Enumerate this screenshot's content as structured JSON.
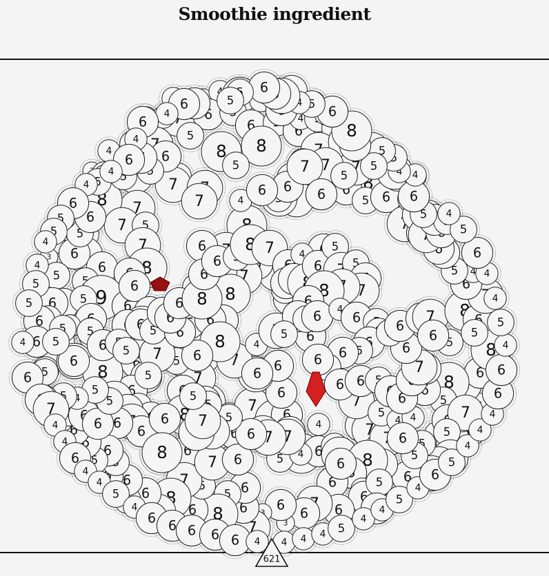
{
  "title": "Smoothie ingredient",
  "counter": "621",
  "colors": {
    "background": "#f5f4f4",
    "ball_fill": "#f6f5f5",
    "ball_stroke": "#222222",
    "aura_stroke": "#777777",
    "pointer_fill": "#d42020",
    "pointer_fill_dark": "#991010"
  },
  "balls": [
    {
      "n": 4
    },
    {
      "n": 4
    },
    {
      "n": 4
    },
    {
      "n": 7
    },
    {
      "n": 4
    },
    {
      "n": 4
    },
    {
      "n": 6
    },
    {
      "n": 4
    },
    {
      "n": 7
    },
    {
      "n": 6
    },
    {
      "n": 5
    },
    {
      "n": 6
    },
    {
      "n": 5
    },
    {
      "n": 6
    },
    {
      "n": 6
    },
    {
      "n": 4
    },
    {
      "n": 5
    },
    {
      "n": 4
    },
    {
      "n": 5
    },
    {
      "n": 8
    },
    {
      "n": 8
    },
    {
      "n": 5
    },
    {
      "n": 7
    },
    {
      "n": 5
    },
    {
      "n": 6
    },
    {
      "n": 4
    },
    {
      "n": 7
    },
    {
      "n": 4
    },
    {
      "n": 5
    },
    {
      "n": 3
    },
    {
      "n": 5
    },
    {
      "n": 7
    },
    {
      "n": 5
    },
    {
      "n": 5
    },
    {
      "n": 7
    },
    {
      "n": 6
    },
    {
      "n": 7
    },
    {
      "n": 8
    },
    {
      "n": 6
    },
    {
      "n": 5
    },
    {
      "n": 4
    },
    {
      "n": 7
    },
    {
      "n": 7
    },
    {
      "n": 7
    },
    {
      "n": 6
    },
    {
      "n": 3
    },
    {
      "n": 6
    },
    {
      "n": 5
    },
    {
      "n": 7
    },
    {
      "n": 5
    },
    {
      "n": 6
    },
    {
      "n": 8
    },
    {
      "n": 4
    },
    {
      "n": 7
    },
    {
      "n": 7
    },
    {
      "n": 7
    },
    {
      "n": 5
    },
    {
      "n": 6
    },
    {
      "n": 6
    },
    {
      "n": 8
    },
    {
      "n": 6
    },
    {
      "n": 5
    },
    {
      "n": 4
    },
    {
      "n": 7
    },
    {
      "n": 7
    },
    {
      "n": 5
    },
    {
      "n": 6
    },
    {
      "n": 7
    },
    {
      "n": 6
    },
    {
      "n": 6
    },
    {
      "n": 7
    },
    {
      "n": 5
    },
    {
      "n": 5
    },
    {
      "n": 7
    },
    {
      "n": 4
    },
    {
      "n": 6
    },
    {
      "n": 6
    },
    {
      "n": 5
    },
    {
      "n": 6
    },
    {
      "n": 3
    },
    {
      "n": 5
    },
    {
      "n": 5
    },
    {
      "n": 8
    },
    {
      "n": 5
    },
    {
      "n": 5
    },
    {
      "n": 7
    },
    {
      "n": 5
    },
    {
      "n": 7
    },
    {
      "n": 6
    },
    {
      "n": 5
    },
    {
      "n": 6
    },
    {
      "n": 4
    },
    {
      "n": 6
    },
    {
      "n": 7
    },
    {
      "n": 8
    },
    {
      "n": 6
    },
    {
      "n": 7
    },
    {
      "n": 3
    },
    {
      "n": 5
    },
    {
      "n": 5
    },
    {
      "n": 6
    },
    {
      "n": 4
    },
    {
      "n": 6
    },
    {
      "n": 5
    },
    {
      "n": 9
    },
    {
      "n": 6
    },
    {
      "n": 6
    },
    {
      "n": 6
    },
    {
      "n": 7
    },
    {
      "n": 5
    },
    {
      "n": 6
    },
    {
      "n": 6
    },
    {
      "n": 6
    },
    {
      "n": 5
    },
    {
      "n": 6
    },
    {
      "n": 5
    },
    {
      "n": 6
    },
    {
      "n": 5
    },
    {
      "n": 4
    },
    {
      "n": 8
    },
    {
      "n": 5
    },
    {
      "n": 6
    },
    {
      "n": 7
    },
    {
      "n": 5
    },
    {
      "n": 8
    },
    {
      "n": 7
    },
    {
      "n": 5
    },
    {
      "n": 6
    },
    {
      "n": 6
    },
    {
      "n": 6
    },
    {
      "n": 4
    },
    {
      "n": 5
    },
    {
      "n": 6
    },
    {
      "n": 4
    },
    {
      "n": 7
    },
    {
      "n": 6
    },
    {
      "n": 6
    },
    {
      "n": 7
    },
    {
      "n": 6
    },
    {
      "n": 4
    },
    {
      "n": 5
    },
    {
      "n": 5
    },
    {
      "n": 6
    },
    {
      "n": 7
    },
    {
      "n": 7
    },
    {
      "n": 5
    },
    {
      "n": 7
    },
    {
      "n": 5
    },
    {
      "n": 7
    },
    {
      "n": 8
    },
    {
      "n": 6
    },
    {
      "n": 6
    },
    {
      "n": 7
    },
    {
      "n": 4
    },
    {
      "n": 6
    },
    {
      "n": 7
    },
    {
      "n": 6
    },
    {
      "n": 6
    },
    {
      "n": 8
    },
    {
      "n": 4
    },
    {
      "n": 6
    },
    {
      "n": 5
    },
    {
      "n": 7
    },
    {
      "n": 6
    },
    {
      "n": 7
    },
    {
      "n": 5
    },
    {
      "n": 7
    },
    {
      "n": 7
    },
    {
      "n": 5
    },
    {
      "n": 4
    },
    {
      "n": 4
    },
    {
      "n": 4
    },
    {
      "n": 6
    },
    {
      "n": 6
    },
    {
      "n": 7
    },
    {
      "n": 5
    },
    {
      "n": 6
    },
    {
      "n": 6
    },
    {
      "n": 8
    },
    {
      "n": 5
    },
    {
      "n": 6
    },
    {
      "n": 6
    },
    {
      "n": 7
    },
    {
      "n": 5
    },
    {
      "n": 7
    },
    {
      "n": 6
    },
    {
      "n": 5
    },
    {
      "n": 7
    },
    {
      "n": 6
    },
    {
      "n": 5
    },
    {
      "n": 6
    },
    {
      "n": 6
    },
    {
      "n": 5
    },
    {
      "n": 7
    },
    {
      "n": 8
    },
    {
      "n": 6
    },
    {
      "n": 6
    },
    {
      "n": 6
    },
    {
      "n": 4
    },
    {
      "n": 6
    },
    {
      "n": 5
    },
    {
      "n": 6
    },
    {
      "n": 6
    },
    {
      "n": 7
    },
    {
      "n": 6
    },
    {
      "n": 3
    },
    {
      "n": 6
    },
    {
      "n": 3
    },
    {
      "n": 7
    },
    {
      "n": 6
    },
    {
      "n": 6
    },
    {
      "n": 5
    },
    {
      "n": 8
    },
    {
      "n": 6
    },
    {
      "n": 5
    },
    {
      "n": 7
    },
    {
      "n": 8
    },
    {
      "n": 7
    },
    {
      "n": 6
    },
    {
      "n": 5
    },
    {
      "n": 6
    },
    {
      "n": 6
    },
    {
      "n": 5
    },
    {
      "n": 6
    },
    {
      "n": 5
    },
    {
      "n": 5
    },
    {
      "n": 6
    },
    {
      "n": 6
    },
    {
      "n": 5
    },
    {
      "n": 5
    },
    {
      "n": 6
    },
    {
      "n": 6
    },
    {
      "n": 5
    },
    {
      "n": 5
    },
    {
      "n": 4
    },
    {
      "n": 5
    },
    {
      "n": 5
    },
    {
      "n": 5
    },
    {
      "n": 6
    },
    {
      "n": 5
    },
    {
      "n": 6
    },
    {
      "n": 5
    },
    {
      "n": 6
    },
    {
      "n": 5
    },
    {
      "n": 6
    },
    {
      "n": 6
    },
    {
      "n": 6
    },
    {
      "n": 7
    },
    {
      "n": 5
    },
    {
      "n": 7
    },
    {
      "n": 6
    },
    {
      "n": 4
    },
    {
      "n": 7
    },
    {
      "n": 6
    },
    {
      "n": 5
    },
    {
      "n": 8
    },
    {
      "n": 6
    },
    {
      "n": 5
    },
    {
      "n": 7
    },
    {
      "n": 6
    },
    {
      "n": 7
    },
    {
      "n": 6
    },
    {
      "n": 7
    },
    {
      "n": 6
    },
    {
      "n": 5
    },
    {
      "n": 4
    },
    {
      "n": 8
    },
    {
      "n": 6
    },
    {
      "n": 7
    },
    {
      "n": 6
    },
    {
      "n": 6
    },
    {
      "n": 6
    },
    {
      "n": 6
    },
    {
      "n": 7
    },
    {
      "n": 6
    },
    {
      "n": 6
    },
    {
      "n": 8
    },
    {
      "n": 6
    },
    {
      "n": 8
    },
    {
      "n": 7
    },
    {
      "n": 6
    },
    {
      "n": 5
    },
    {
      "n": 4
    },
    {
      "n": 7
    },
    {
      "n": 7
    },
    {
      "n": 6
    },
    {
      "n": 5
    },
    {
      "n": 7
    },
    {
      "n": 7
    },
    {
      "n": 5
    },
    {
      "n": 7
    },
    {
      "n": 5
    },
    {
      "n": 5
    },
    {
      "n": 7
    },
    {
      "n": 5
    },
    {
      "n": 5
    },
    {
      "n": 5
    },
    {
      "n": 6
    },
    {
      "n": 6
    },
    {
      "n": 6
    },
    {
      "n": 8
    },
    {
      "n": 6
    },
    {
      "n": 6
    },
    {
      "n": 6
    },
    {
      "n": 6
    },
    {
      "n": 8
    },
    {
      "n": 6
    },
    {
      "n": 6
    },
    {
      "n": 5
    },
    {
      "n": 8
    },
    {
      "n": 7
    },
    {
      "n": 6
    },
    {
      "n": 6
    },
    {
      "n": 6
    },
    {
      "n": 4
    },
    {
      "n": 6
    },
    {
      "n": 6
    },
    {
      "n": 8
    },
    {
      "n": 6
    },
    {
      "n": 5
    },
    {
      "n": 7
    },
    {
      "n": 5
    },
    {
      "n": 6
    },
    {
      "n": 7
    },
    {
      "n": 7
    },
    {
      "n": 8
    },
    {
      "n": 6
    },
    {
      "n": 6
    },
    {
      "n": 5
    },
    {
      "n": 5
    },
    {
      "n": 6
    },
    {
      "n": 4
    },
    {
      "n": 6
    },
    {
      "n": 5
    },
    {
      "n": 5
    },
    {
      "n": 6
    },
    {
      "n": 5
    },
    {
      "n": 6
    },
    {
      "n": 5
    },
    {
      "n": 6
    },
    {
      "n": 6
    },
    {
      "n": 6
    },
    {
      "n": 5
    },
    {
      "n": 6
    },
    {
      "n": 6
    },
    {
      "n": 6
    },
    {
      "n": 6
    },
    {
      "n": 7
    },
    {
      "n": 6
    },
    {
      "n": 5
    },
    {
      "n": 6
    },
    {
      "n": 6
    },
    {
      "n": 7
    },
    {
      "n": 5
    },
    {
      "n": 6
    },
    {
      "n": 8
    },
    {
      "n": 6
    },
    {
      "n": 7
    },
    {
      "n": 8
    },
    {
      "n": 5
    },
    {
      "n": 6
    },
    {
      "n": 4
    },
    {
      "n": 5
    },
    {
      "n": 6
    },
    {
      "n": 6
    },
    {
      "n": 7
    },
    {
      "n": 6
    },
    {
      "n": 6
    },
    {
      "n": 5
    },
    {
      "n": 5
    },
    {
      "n": 6
    },
    {
      "n": 4
    },
    {
      "n": 4
    },
    {
      "n": 5
    },
    {
      "n": 5
    },
    {
      "n": 5
    },
    {
      "n": 6
    },
    {
      "n": 8
    },
    {
      "n": 6
    },
    {
      "n": 3
    },
    {
      "n": 5
    },
    {
      "n": 4
    },
    {
      "n": 7
    },
    {
      "n": 6
    },
    {
      "n": 6
    },
    {
      "n": 5
    },
    {
      "n": 5
    },
    {
      "n": 6
    },
    {
      "n": 6
    },
    {
      "n": 4
    },
    {
      "n": 6
    },
    {
      "n": 4
    },
    {
      "n": 6
    },
    {
      "n": 4
    },
    {
      "n": 4
    },
    {
      "n": 6
    },
    {
      "n": 5
    },
    {
      "n": 5
    },
    {
      "n": 4
    },
    {
      "n": 4
    },
    {
      "n": 5
    },
    {
      "n": 5
    },
    {
      "n": 4
    },
    {
      "n": 6
    },
    {
      "n": 6
    },
    {
      "n": 7
    },
    {
      "n": 4
    },
    {
      "n": 4
    },
    {
      "n": 6
    },
    {
      "n": 4
    },
    {
      "n": 4
    },
    {
      "n": 5
    },
    {
      "n": 4
    },
    {
      "n": 6
    },
    {
      "n": 6
    },
    {
      "n": 6
    },
    {
      "n": 6
    },
    {
      "n": 6
    },
    {
      "n": 4
    },
    {
      "n": 4
    },
    {
      "n": 4
    },
    {
      "n": 4
    },
    {
      "n": 5
    },
    {
      "n": 4
    },
    {
      "n": 4
    },
    {
      "n": 5
    },
    {
      "n": 4
    },
    {
      "n": 6
    },
    {
      "n": 5
    },
    {
      "n": 4
    },
    {
      "n": 4
    },
    {
      "n": 4
    },
    {
      "n": 6
    },
    {
      "n": 6
    },
    {
      "n": 4
    },
    {
      "n": 5
    },
    {
      "n": 4
    },
    {
      "n": 4
    },
    {
      "n": 6
    },
    {
      "n": 5
    },
    {
      "n": 4
    },
    {
      "n": 5
    },
    {
      "n": 6
    },
    {
      "n": 4
    },
    {
      "n": 4
    },
    {
      "n": 6
    },
    {
      "n": 4
    },
    {
      "n": 4
    },
    {
      "n": 4
    },
    {
      "n": 6
    },
    {
      "n": 6
    }
  ]
}
